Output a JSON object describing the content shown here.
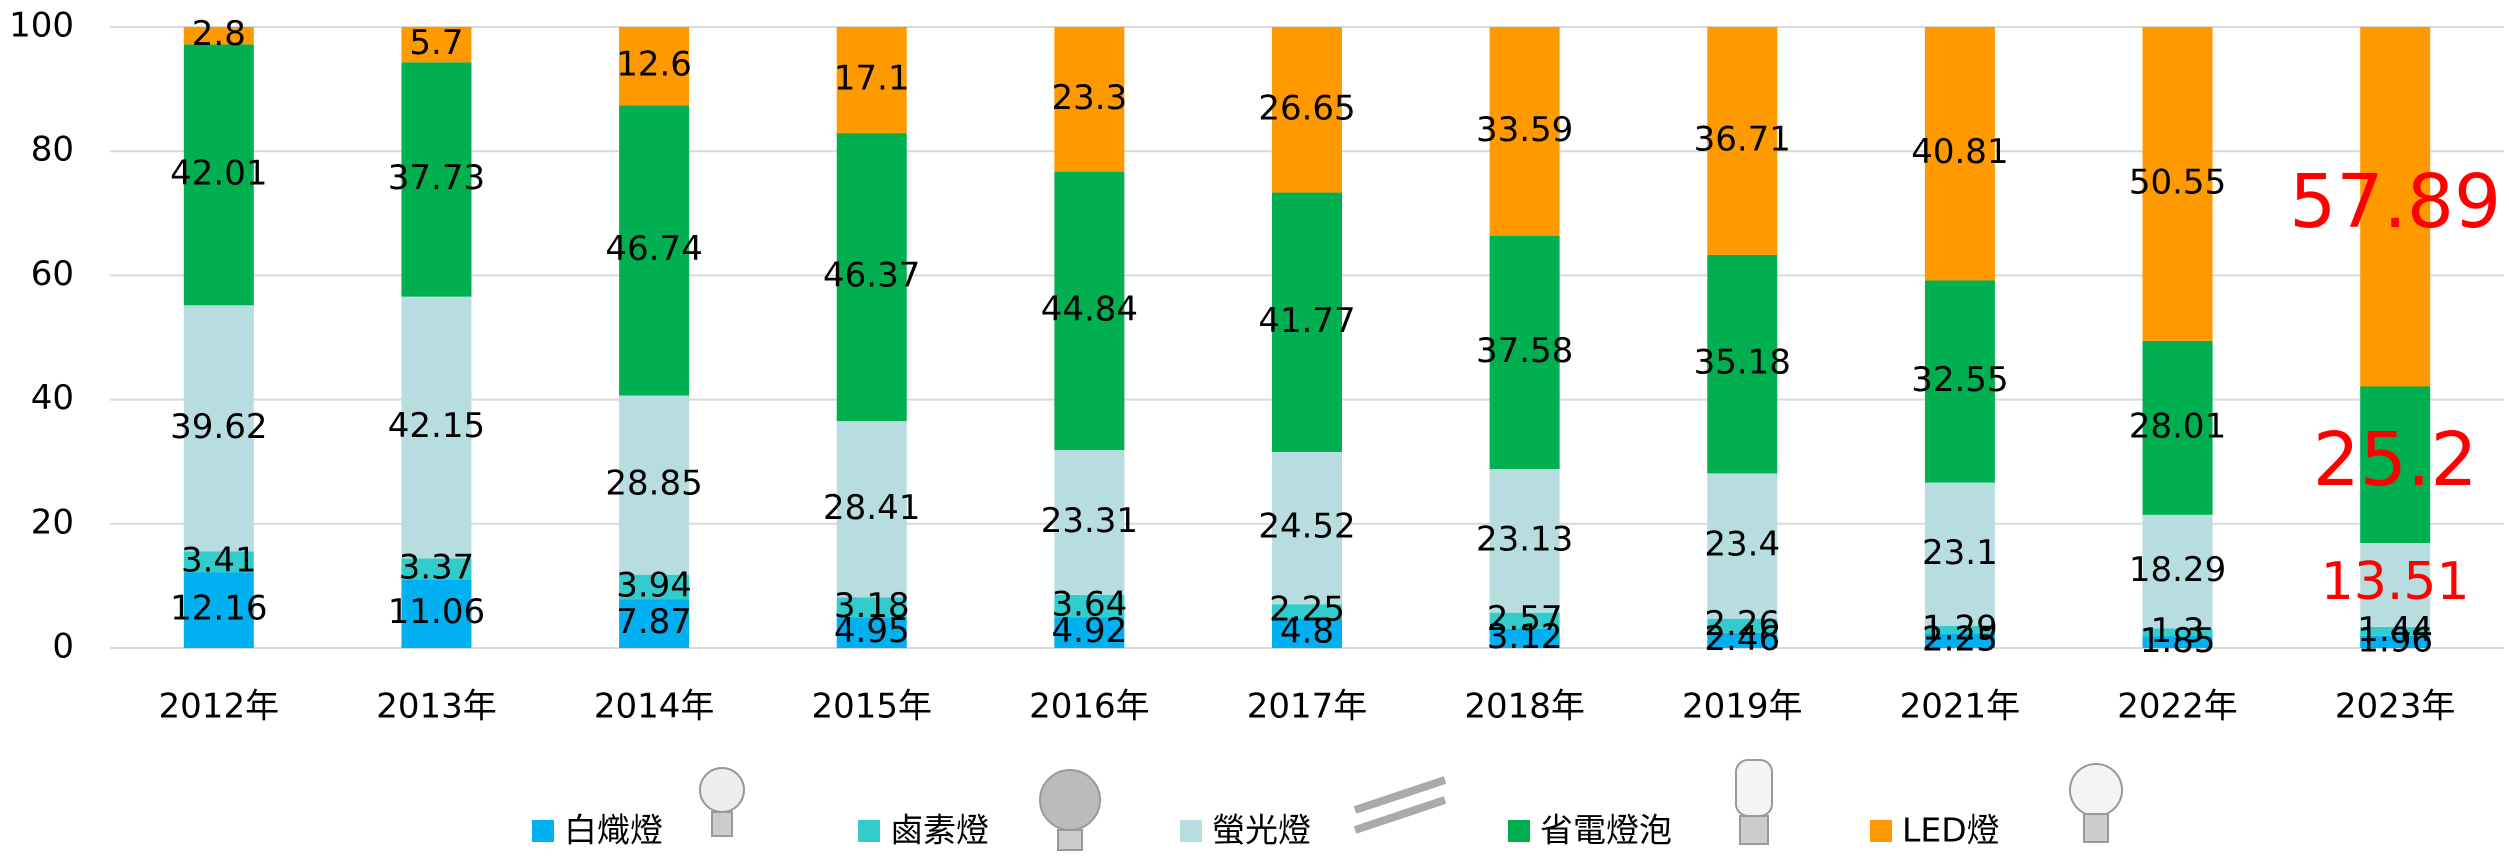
{
  "chart_data": {
    "type": "stacked_bar",
    "categories": [
      "2012年",
      "2013年",
      "2014年",
      "2015年",
      "2016年",
      "2017年",
      "2018年",
      "2019年",
      "2021年",
      "2022年",
      "2023年"
    ],
    "series": [
      {
        "name": "白熾燈",
        "color": "#00b0f0",
        "values": [
          12.16,
          11.06,
          7.87,
          4.95,
          4.92,
          4.8,
          3.12,
          2.46,
          2.25,
          1.85,
          1.96
        ]
      },
      {
        "name": "鹵素燈",
        "color": "#33cccc",
        "values": [
          3.41,
          3.37,
          3.94,
          3.18,
          3.64,
          2.25,
          2.57,
          2.26,
          1.29,
          1.3,
          1.44
        ]
      },
      {
        "name": "螢光燈",
        "color": "#b8dde1",
        "values": [
          39.62,
          42.15,
          28.85,
          28.41,
          23.31,
          24.52,
          23.13,
          23.4,
          23.1,
          18.29,
          13.51
        ]
      },
      {
        "name": "省電燈泡",
        "color": "#00b050",
        "values": [
          42.01,
          37.73,
          46.74,
          46.37,
          44.84,
          41.77,
          37.58,
          35.18,
          32.55,
          28.01,
          25.2
        ]
      },
      {
        "name": "LED燈",
        "color": "#ff9900",
        "values": [
          2.8,
          5.7,
          12.6,
          17.1,
          23.3,
          26.65,
          33.59,
          36.71,
          40.81,
          50.55,
          57.89
        ]
      }
    ],
    "ylim": [
      0,
      100
    ],
    "yticks": [
      0,
      20,
      40,
      60,
      80,
      100
    ],
    "grid": true,
    "legend": "bottom",
    "highlight_category": "2023年",
    "highlight_series": [
      "螢光燈",
      "省電燈泡",
      "LED燈"
    ],
    "highlight_color": "#ff0000"
  }
}
